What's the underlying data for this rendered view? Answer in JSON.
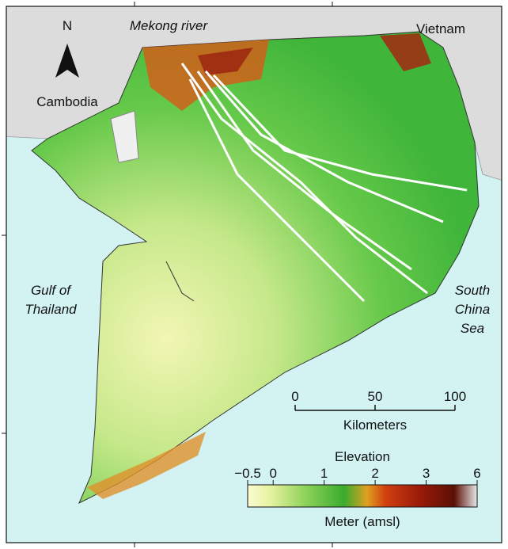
{
  "labels": {
    "north": "N",
    "river": "Mekong river",
    "vietnam": "Vietnam",
    "cambodia": "Cambodia",
    "gulf": [
      "Gulf of",
      "Thailand"
    ],
    "sea": [
      "South",
      "China",
      "Sea"
    ]
  },
  "scale_bar": {
    "ticks": [
      0,
      50,
      100
    ],
    "unit": "Kilometers"
  },
  "legend": {
    "title": "Elevation",
    "ticks": [
      {
        "value": -0.5,
        "label": "−0.5"
      },
      0,
      1,
      2,
      3,
      6
    ],
    "unit": "Meter (amsl)"
  }
}
